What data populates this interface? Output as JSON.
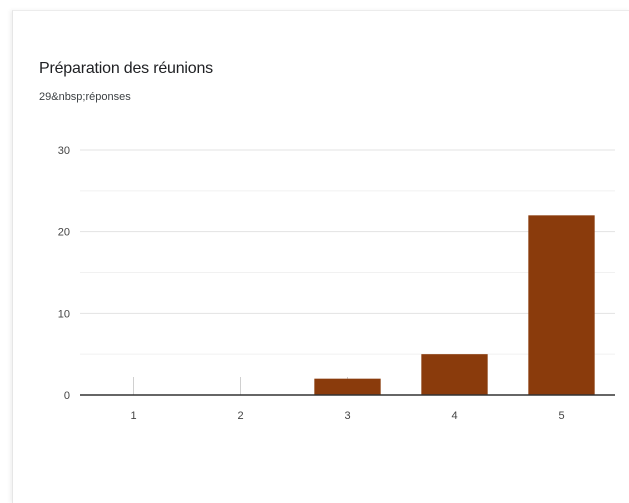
{
  "title": "Préparation des réunions",
  "subtitle": "29&nbsp;réponses",
  "colors": {
    "bar": "#8a3b0c",
    "grid": "#ececec",
    "axis": "#333333",
    "tick_label": "#444444"
  },
  "chart_data": {
    "type": "bar",
    "categories": [
      "1",
      "2",
      "3",
      "4",
      "5"
    ],
    "values": [
      0,
      0,
      2,
      5,
      22
    ],
    "ylim": [
      0,
      30
    ],
    "yticks": [
      0,
      10,
      20,
      30
    ],
    "xlabel": "",
    "ylabel": "",
    "grid": true,
    "legend": "none"
  }
}
